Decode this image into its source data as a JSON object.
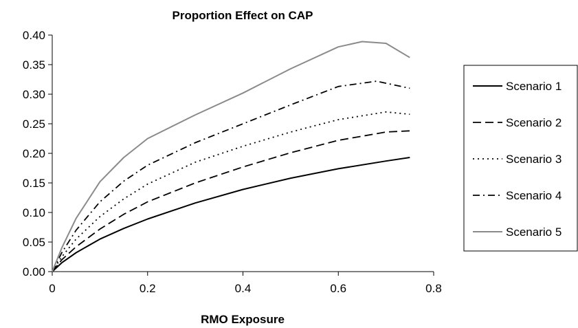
{
  "chart_data": {
    "type": "line",
    "title": "Proportion Effect on CAP",
    "xlabel": "RMO Exposure",
    "ylabel": "",
    "xlim": [
      0,
      0.8
    ],
    "ylim": [
      0,
      0.4
    ],
    "x_ticks": [
      "0",
      "0.2",
      "0.4",
      "0.6",
      "0.8"
    ],
    "y_ticks": [
      "0.00",
      "0.05",
      "0.10",
      "0.15",
      "0.20",
      "0.25",
      "0.30",
      "0.35",
      "0.40"
    ],
    "grid": false,
    "legend_position": "right",
    "series": [
      {
        "name": "Scenario 1",
        "line_style": "solid",
        "color": "#000000",
        "x": [
          0,
          0.02,
          0.05,
          0.1,
          0.15,
          0.2,
          0.3,
          0.4,
          0.5,
          0.6,
          0.7,
          0.75
        ],
        "y": [
          0,
          0.015,
          0.032,
          0.055,
          0.073,
          0.089,
          0.116,
          0.139,
          0.158,
          0.174,
          0.187,
          0.193
        ]
      },
      {
        "name": "Scenario 2",
        "line_style": "long-dash",
        "color": "#000000",
        "x": [
          0,
          0.02,
          0.05,
          0.1,
          0.15,
          0.2,
          0.3,
          0.4,
          0.5,
          0.6,
          0.7,
          0.75
        ],
        "y": [
          0,
          0.02,
          0.042,
          0.072,
          0.097,
          0.118,
          0.15,
          0.177,
          0.201,
          0.222,
          0.236,
          0.238
        ]
      },
      {
        "name": "Scenario 3",
        "line_style": "dotted",
        "color": "#000000",
        "x": [
          0,
          0.02,
          0.05,
          0.1,
          0.15,
          0.2,
          0.3,
          0.4,
          0.5,
          0.6,
          0.7,
          0.75
        ],
        "y": [
          0,
          0.025,
          0.055,
          0.093,
          0.123,
          0.148,
          0.185,
          0.212,
          0.236,
          0.257,
          0.27,
          0.266
        ]
      },
      {
        "name": "Scenario 4",
        "line_style": "dash-dot",
        "color": "#000000",
        "x": [
          0,
          0.02,
          0.05,
          0.1,
          0.15,
          0.2,
          0.3,
          0.4,
          0.5,
          0.6,
          0.68,
          0.75
        ],
        "y": [
          0,
          0.032,
          0.07,
          0.118,
          0.153,
          0.18,
          0.218,
          0.25,
          0.282,
          0.313,
          0.322,
          0.31
        ]
      },
      {
        "name": "Scenario 5",
        "line_style": "solid",
        "color": "#8a8a8a",
        "x": [
          0,
          0.02,
          0.05,
          0.1,
          0.15,
          0.2,
          0.3,
          0.4,
          0.5,
          0.6,
          0.65,
          0.7,
          0.75
        ],
        "y": [
          0,
          0.04,
          0.09,
          0.152,
          0.193,
          0.225,
          0.265,
          0.302,
          0.343,
          0.38,
          0.389,
          0.386,
          0.362
        ]
      }
    ]
  }
}
